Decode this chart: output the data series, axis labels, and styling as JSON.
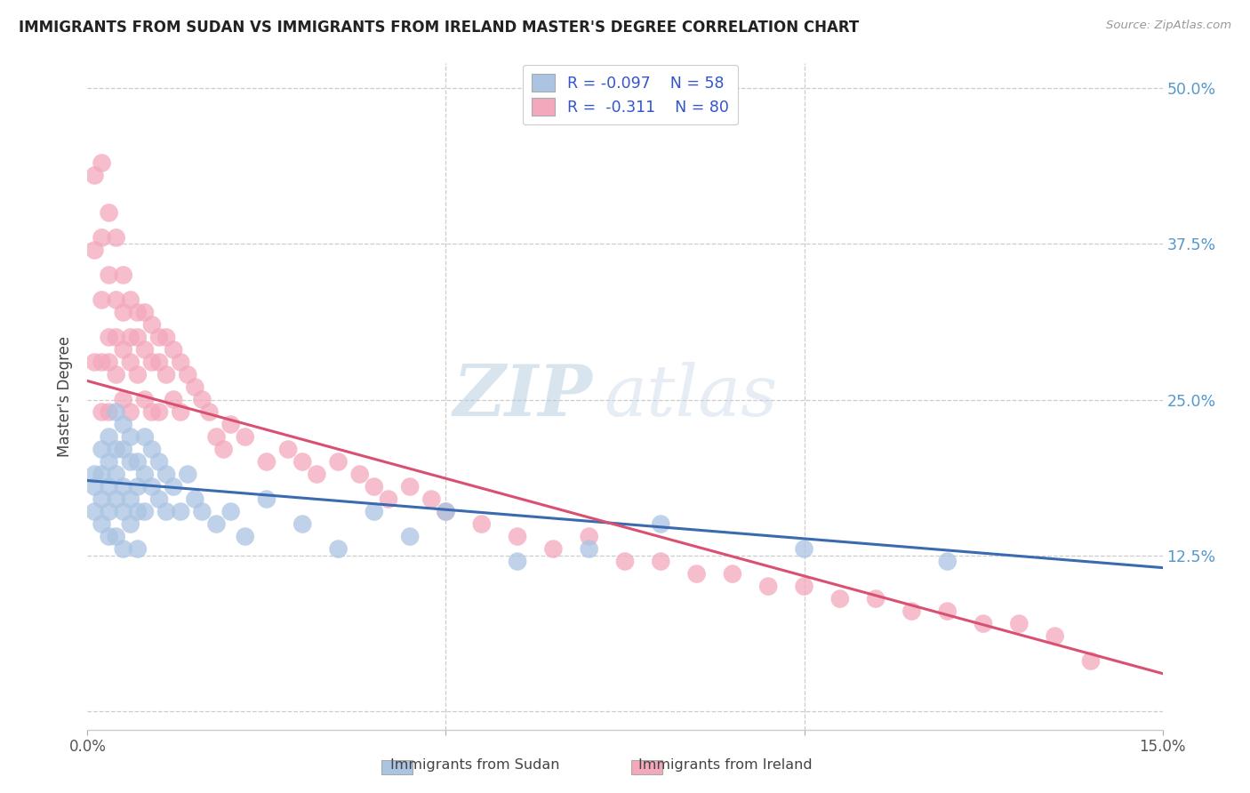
{
  "title": "IMMIGRANTS FROM SUDAN VS IMMIGRANTS FROM IRELAND MASTER'S DEGREE CORRELATION CHART",
  "source": "Source: ZipAtlas.com",
  "ylabel": "Master's Degree",
  "xmin": 0.0,
  "xmax": 0.15,
  "ymin": -0.015,
  "ymax": 0.52,
  "ytick_vals": [
    0.0,
    0.125,
    0.25,
    0.375,
    0.5
  ],
  "ytick_labels": [
    "",
    "12.5%",
    "25.0%",
    "37.5%",
    "50.0%"
  ],
  "color_sudan": "#aac4e2",
  "color_ireland": "#f4a8bc",
  "color_sudan_line": "#3a6ab0",
  "color_ireland_line": "#d95070",
  "color_axis_labels": "#5599cc",
  "color_r_value": "#3355cc",
  "watermark_color": "#d8e8f4",
  "sudan_x": [
    0.001,
    0.001,
    0.001,
    0.002,
    0.002,
    0.002,
    0.002,
    0.003,
    0.003,
    0.003,
    0.003,
    0.003,
    0.004,
    0.004,
    0.004,
    0.004,
    0.004,
    0.005,
    0.005,
    0.005,
    0.005,
    0.005,
    0.006,
    0.006,
    0.006,
    0.006,
    0.007,
    0.007,
    0.007,
    0.007,
    0.008,
    0.008,
    0.008,
    0.009,
    0.009,
    0.01,
    0.01,
    0.011,
    0.011,
    0.012,
    0.013,
    0.014,
    0.015,
    0.016,
    0.018,
    0.02,
    0.022,
    0.025,
    0.03,
    0.035,
    0.04,
    0.045,
    0.05,
    0.06,
    0.07,
    0.08,
    0.1,
    0.12
  ],
  "sudan_y": [
    0.19,
    0.18,
    0.16,
    0.21,
    0.19,
    0.17,
    0.15,
    0.22,
    0.2,
    0.18,
    0.16,
    0.14,
    0.24,
    0.21,
    0.19,
    0.17,
    0.14,
    0.23,
    0.21,
    0.18,
    0.16,
    0.13,
    0.22,
    0.2,
    0.17,
    0.15,
    0.2,
    0.18,
    0.16,
    0.13,
    0.22,
    0.19,
    0.16,
    0.21,
    0.18,
    0.2,
    0.17,
    0.19,
    0.16,
    0.18,
    0.16,
    0.19,
    0.17,
    0.16,
    0.15,
    0.16,
    0.14,
    0.17,
    0.15,
    0.13,
    0.16,
    0.14,
    0.16,
    0.12,
    0.13,
    0.15,
    0.13,
    0.12
  ],
  "ireland_x": [
    0.001,
    0.001,
    0.001,
    0.002,
    0.002,
    0.002,
    0.002,
    0.002,
    0.003,
    0.003,
    0.003,
    0.003,
    0.003,
    0.004,
    0.004,
    0.004,
    0.004,
    0.005,
    0.005,
    0.005,
    0.005,
    0.006,
    0.006,
    0.006,
    0.006,
    0.007,
    0.007,
    0.007,
    0.008,
    0.008,
    0.008,
    0.009,
    0.009,
    0.009,
    0.01,
    0.01,
    0.01,
    0.011,
    0.011,
    0.012,
    0.012,
    0.013,
    0.013,
    0.014,
    0.015,
    0.016,
    0.017,
    0.018,
    0.019,
    0.02,
    0.022,
    0.025,
    0.028,
    0.03,
    0.032,
    0.035,
    0.038,
    0.04,
    0.042,
    0.045,
    0.048,
    0.05,
    0.055,
    0.06,
    0.065,
    0.07,
    0.075,
    0.08,
    0.085,
    0.09,
    0.095,
    0.1,
    0.105,
    0.11,
    0.115,
    0.12,
    0.125,
    0.13,
    0.135,
    0.14
  ],
  "ireland_y": [
    0.43,
    0.37,
    0.28,
    0.44,
    0.38,
    0.33,
    0.28,
    0.24,
    0.4,
    0.35,
    0.3,
    0.28,
    0.24,
    0.38,
    0.33,
    0.3,
    0.27,
    0.35,
    0.32,
    0.29,
    0.25,
    0.33,
    0.3,
    0.28,
    0.24,
    0.32,
    0.3,
    0.27,
    0.32,
    0.29,
    0.25,
    0.31,
    0.28,
    0.24,
    0.3,
    0.28,
    0.24,
    0.3,
    0.27,
    0.29,
    0.25,
    0.28,
    0.24,
    0.27,
    0.26,
    0.25,
    0.24,
    0.22,
    0.21,
    0.23,
    0.22,
    0.2,
    0.21,
    0.2,
    0.19,
    0.2,
    0.19,
    0.18,
    0.17,
    0.18,
    0.17,
    0.16,
    0.15,
    0.14,
    0.13,
    0.14,
    0.12,
    0.12,
    0.11,
    0.11,
    0.1,
    0.1,
    0.09,
    0.09,
    0.08,
    0.08,
    0.07,
    0.07,
    0.06,
    0.04
  ]
}
